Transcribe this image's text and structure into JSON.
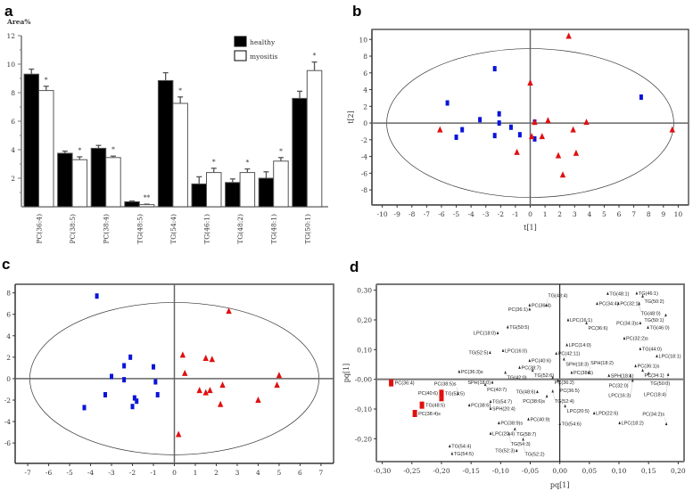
{
  "chart_data": [
    {
      "panel": "a",
      "type": "bar",
      "ylabel": "Area%",
      "ylim": [
        0,
        12
      ],
      "yticks": [
        2,
        4,
        6,
        8,
        10,
        12
      ],
      "categories": [
        "PC(36:4)",
        "PC(38:5)",
        "PC(38:4)",
        "TG(48:5)",
        "TG(54:4)",
        "TG(46:1)",
        "TG(48:2)",
        "TG(48:1)",
        "TG(50:1)"
      ],
      "series": [
        {
          "name": "healthy",
          "color": "#000000",
          "values": [
            9.3,
            3.75,
            4.1,
            0.35,
            8.85,
            1.6,
            1.7,
            2.0,
            7.6
          ],
          "errors": [
            0.35,
            0.15,
            0.2,
            0.05,
            0.55,
            0.5,
            0.25,
            0.45,
            0.5
          ]
        },
        {
          "name": "myositis",
          "color": "#ffffff",
          "values": [
            8.15,
            3.3,
            3.45,
            0.15,
            7.25,
            2.4,
            2.4,
            3.2,
            9.55
          ],
          "errors": [
            0.3,
            0.2,
            0.1,
            0.03,
            0.45,
            0.3,
            0.25,
            0.25,
            0.6
          ]
        }
      ],
      "significance": [
        "*",
        "*",
        "*",
        "**",
        "*",
        "*",
        "*",
        "*",
        "*"
      ],
      "legend": "top-right"
    },
    {
      "panel": "b",
      "type": "scatter",
      "xlabel": "t[1]",
      "ylabel": "t[2]",
      "xlim": [
        -10.7,
        10.7
      ],
      "ylim": [
        -9.8,
        11.2
      ],
      "xticks": [
        -10,
        -9,
        -8,
        -7,
        -6,
        -5,
        -4,
        -3,
        -2,
        -1,
        0,
        1,
        2,
        3,
        4,
        5,
        6,
        7,
        8,
        9,
        10
      ],
      "yticks": [
        -8,
        -6,
        -4,
        -2,
        0,
        2,
        4,
        6,
        8,
        10
      ],
      "ellipse": [
        9.7,
        8.9
      ],
      "series": [
        {
          "name": "healthy",
          "marker": "square",
          "color": "#0a14d8",
          "points": [
            [
              -2.4,
              6.5
            ],
            [
              -5.6,
              2.4
            ],
            [
              -3.4,
              0.4
            ],
            [
              -2.1,
              1.1
            ],
            [
              -2.1,
              0
            ],
            [
              -4.6,
              -0.8
            ],
            [
              -5,
              -1.7
            ],
            [
              -2.4,
              -1.5
            ],
            [
              -1.3,
              -0.5
            ],
            [
              -0.7,
              -1.4
            ],
            [
              0.3,
              0.1
            ],
            [
              0.3,
              -1.9
            ],
            [
              7.5,
              3.1
            ]
          ]
        },
        {
          "name": "myositis",
          "marker": "triangle",
          "color": "#e01010",
          "points": [
            [
              2.6,
              10.4
            ],
            [
              0,
              4.8
            ],
            [
              -6.1,
              -0.8
            ],
            [
              0.3,
              0.1
            ],
            [
              1.2,
              0.3
            ],
            [
              3.8,
              0.1
            ],
            [
              2.9,
              -0.8
            ],
            [
              0.1,
              -1.6
            ],
            [
              0.8,
              -1.6
            ],
            [
              -0.9,
              -3.5
            ],
            [
              1.9,
              -3.9
            ],
            [
              3.1,
              -3.6
            ],
            [
              2.2,
              -6.2
            ],
            [
              9.6,
              -0.8
            ]
          ]
        }
      ]
    },
    {
      "panel": "c",
      "type": "scatter",
      "xlim": [
        -7.6,
        7.6
      ],
      "ylim": [
        -7.9,
        8.8
      ],
      "xticks": [
        -7,
        -6,
        -5,
        -4,
        -3,
        -2,
        -1,
        0,
        1,
        2,
        3,
        4,
        5,
        6,
        7
      ],
      "yticks": [
        -6,
        -4,
        -2,
        0,
        2,
        4,
        6,
        8
      ],
      "ellipse": [
        6.9,
        7.1
      ],
      "series": [
        {
          "name": "healthy",
          "marker": "square",
          "color": "#0a14d8",
          "points": [
            [
              -3.7,
              7.7
            ],
            [
              -2.1,
              2
            ],
            [
              -2.4,
              1.2
            ],
            [
              -1,
              1.1
            ],
            [
              -3,
              0.2
            ],
            [
              -2.4,
              -0.1
            ],
            [
              -0.9,
              -0.3
            ],
            [
              -3.3,
              -1.5
            ],
            [
              -1.9,
              -1.8
            ],
            [
              -1.8,
              -2.1
            ],
            [
              -0.8,
              -1.5
            ],
            [
              -2,
              -2.6
            ],
            [
              -4.3,
              -2.7
            ]
          ]
        },
        {
          "name": "myositis",
          "marker": "triangle",
          "color": "#e01010",
          "points": [
            [
              2.6,
              6.3
            ],
            [
              0.4,
              2.2
            ],
            [
              1.5,
              1.9
            ],
            [
              1.8,
              1.8
            ],
            [
              0.5,
              0.5
            ],
            [
              1.2,
              -1.1
            ],
            [
              1.5,
              -1.3
            ],
            [
              1.7,
              -1.1
            ],
            [
              2.3,
              -0.6
            ],
            [
              5,
              0.3
            ],
            [
              4.9,
              -0.6
            ],
            [
              4,
              -2
            ],
            [
              2.2,
              -2.4
            ],
            [
              0.2,
              -5.2
            ]
          ]
        }
      ]
    },
    {
      "panel": "d",
      "type": "scatter",
      "xlabel": "pq[1]",
      "ylabel": "pq[1]",
      "xlim": [
        -0.31,
        0.21
      ],
      "ylim": [
        -0.277,
        0.32
      ],
      "xticks": [
        "-0,30",
        "-0,25",
        "-0,20",
        "-0,15",
        "-0,10",
        "-0,05",
        "0,00",
        "0,05",
        "0,10",
        "0,15",
        "0,20"
      ],
      "xtick_values": [
        -0.3,
        -0.25,
        -0.2,
        -0.15,
        -0.1,
        -0.05,
        0,
        0.05,
        0.1,
        0.15,
        0.2
      ],
      "yticks": [
        "-0,20",
        "-0,10",
        "-0,00",
        "0,10",
        "0,20",
        "0,30"
      ],
      "ytick_values": [
        -0.2,
        -0.1,
        0,
        0.1,
        0.2,
        0.3
      ],
      "points": [
        {
          "label": "TG(48:1)",
          "x": 0.081,
          "y": 0.289
        },
        {
          "label": "TG(46:1)",
          "x": 0.13,
          "y": 0.29
        },
        {
          "label": "TG(50:2)",
          "x": 0.14,
          "y": 0.28
        },
        {
          "label": "PC(36:4)",
          "x": -0.051,
          "y": 0.25
        },
        {
          "label": "TG(48:4)",
          "x": -0.023,
          "y": 0.25
        },
        {
          "label": "PC(36:1)",
          "x": -0.051,
          "y": 0.236
        },
        {
          "label": "PC(34:4)",
          "x": 0.063,
          "y": 0.255
        },
        {
          "label": "PC(32:1)",
          "x": 0.099,
          "y": 0.255
        },
        {
          "label": "TG(48:0)",
          "x": 0.134,
          "y": 0.255
        },
        {
          "label": "TG(50:1)",
          "x": 0.179,
          "y": 0.216
        },
        {
          "label": "LPC(16:1)",
          "x": 0.014,
          "y": 0.2
        },
        {
          "label": "PC(36:6)",
          "x": 0.045,
          "y": 0.19
        },
        {
          "label": "PC(34:3)s",
          "x": 0.136,
          "y": 0.19
        },
        {
          "label": "TG(46:0)",
          "x": 0.149,
          "y": 0.175
        },
        {
          "label": "TG(50:5)",
          "x": -0.088,
          "y": 0.176
        },
        {
          "label": "LPC(18:0)",
          "x": -0.105,
          "y": 0.156
        },
        {
          "label": "PC(32:2)s",
          "x": 0.109,
          "y": 0.138
        },
        {
          "label": "LPC(14:0)",
          "x": 0.012,
          "y": 0.116
        },
        {
          "label": "TG(44:0)",
          "x": 0.136,
          "y": 0.103
        },
        {
          "label": "LPC(16:0)",
          "x": -0.096,
          "y": 0.097
        },
        {
          "label": "TG(52:5)",
          "x": -0.118,
          "y": 0.09
        },
        {
          "label": "PC(42:11)",
          "x": -0.006,
          "y": 0.087
        },
        {
          "label": "LPC(18:1)",
          "x": 0.164,
          "y": 0.078
        },
        {
          "label": "SPH(18:3)",
          "x": 0.007,
          "y": 0.068
        },
        {
          "label": "PC(40:6)",
          "x": -0.051,
          "y": 0.063
        },
        {
          "label": "PC(38:7)",
          "x": -0.068,
          "y": 0.04
        },
        {
          "label": "TG(52:6)",
          "x": -0.046,
          "y": 0.03
        },
        {
          "label": "PC(36:3)s",
          "x": -0.17,
          "y": 0.026
        },
        {
          "label": "TG(42:0)",
          "x": -0.092,
          "y": 0.023
        },
        {
          "label": "PC(38:5)",
          "x": 0.02,
          "y": 0.023
        },
        {
          "label": "SPH(18:2)",
          "x": 0.049,
          "y": 0.023
        },
        {
          "label": "PC(36:1)s",
          "x": 0.128,
          "y": 0.045
        },
        {
          "label": "PC(34:1)",
          "x": 0.14,
          "y": 0.03
        },
        {
          "label": "TG(50:0)",
          "x": 0.15,
          "y": 0.02
        },
        {
          "label": "SPH(18:1)",
          "x": 0.083,
          "y": 0.013
        },
        {
          "label": "PC(32:0)",
          "x": 0.119,
          "y": 0.013
        },
        {
          "label": "LPC(18:4)",
          "x": 0.183,
          "y": 0.016
        },
        {
          "label": "LPC(16:3)",
          "x": 0.123,
          "y": -0.004
        },
        {
          "label": "PC(36:2)",
          "x": -0.012,
          "y": 0.006
        },
        {
          "label": "PC(36:5)",
          "x": -0.003,
          "y": -0.004
        },
        {
          "label": "PC(36:4)",
          "x": -0.285,
          "y": -0.012,
          "highlight": true
        },
        {
          "label": "SPH(18:0)",
          "x": -0.114,
          "y": -0.01
        },
        {
          "label": "PC(40:7)",
          "x": -0.126,
          "y": -0.018
        },
        {
          "label": "TG(52:5)",
          "x": -0.2,
          "y": -0.047,
          "highlight": true
        },
        {
          "label": "PC(40:6)",
          "x": -0.2,
          "y": -0.062,
          "highlight": true
        },
        {
          "label": "PC(38:5)s",
          "x": -0.172,
          "y": -0.047
        },
        {
          "label": "TG(48:5)",
          "x": -0.233,
          "y": -0.087,
          "highlight": true
        },
        {
          "label": "PC(38:4)s",
          "x": -0.245,
          "y": -0.115,
          "highlight": true
        },
        {
          "label": "TG(54:7)",
          "x": -0.117,
          "y": -0.075
        },
        {
          "label": "SPH(20:4)",
          "x": -0.117,
          "y": -0.098
        },
        {
          "label": "PC(38:6)",
          "x": -0.153,
          "y": -0.087
        },
        {
          "label": "TG(48:6)",
          "x": -0.038,
          "y": -0.042
        },
        {
          "label": "TG(52:4)",
          "x": -0.012,
          "y": -0.04
        },
        {
          "label": "PC(38:6)s",
          "x": -0.022,
          "y": -0.057
        },
        {
          "label": "LPC(20:5)",
          "x": 0.009,
          "y": -0.09
        },
        {
          "label": "LPD(22:6)",
          "x": 0.058,
          "y": -0.114
        },
        {
          "label": "LPC(18:2)",
          "x": 0.101,
          "y": -0.147
        },
        {
          "label": "PC(34:2)s",
          "x": 0.18,
          "y": -0.15
        },
        {
          "label": "TG(54:6)",
          "x": 0.0,
          "y": -0.149
        },
        {
          "label": "PC(38:9)s",
          "x": -0.103,
          "y": -0.147
        },
        {
          "label": "PC(40:9)",
          "x": -0.053,
          "y": -0.134
        },
        {
          "label": "TG(58:7)",
          "x": -0.076,
          "y": -0.167
        },
        {
          "label": "LPC(20:4)",
          "x": -0.117,
          "y": -0.182
        },
        {
          "label": "TG(54:3)",
          "x": -0.086,
          "y": -0.184
        },
        {
          "label": "TG(52:2)",
          "x": -0.062,
          "y": -0.202
        },
        {
          "label": "TG(52:3)",
          "x": -0.073,
          "y": -0.24
        },
        {
          "label": "TG(54:4)",
          "x": -0.186,
          "y": -0.225
        },
        {
          "label": "TG(54:5)",
          "x": -0.182,
          "y": -0.25
        }
      ],
      "highlight_color": "#e01010"
    }
  ]
}
